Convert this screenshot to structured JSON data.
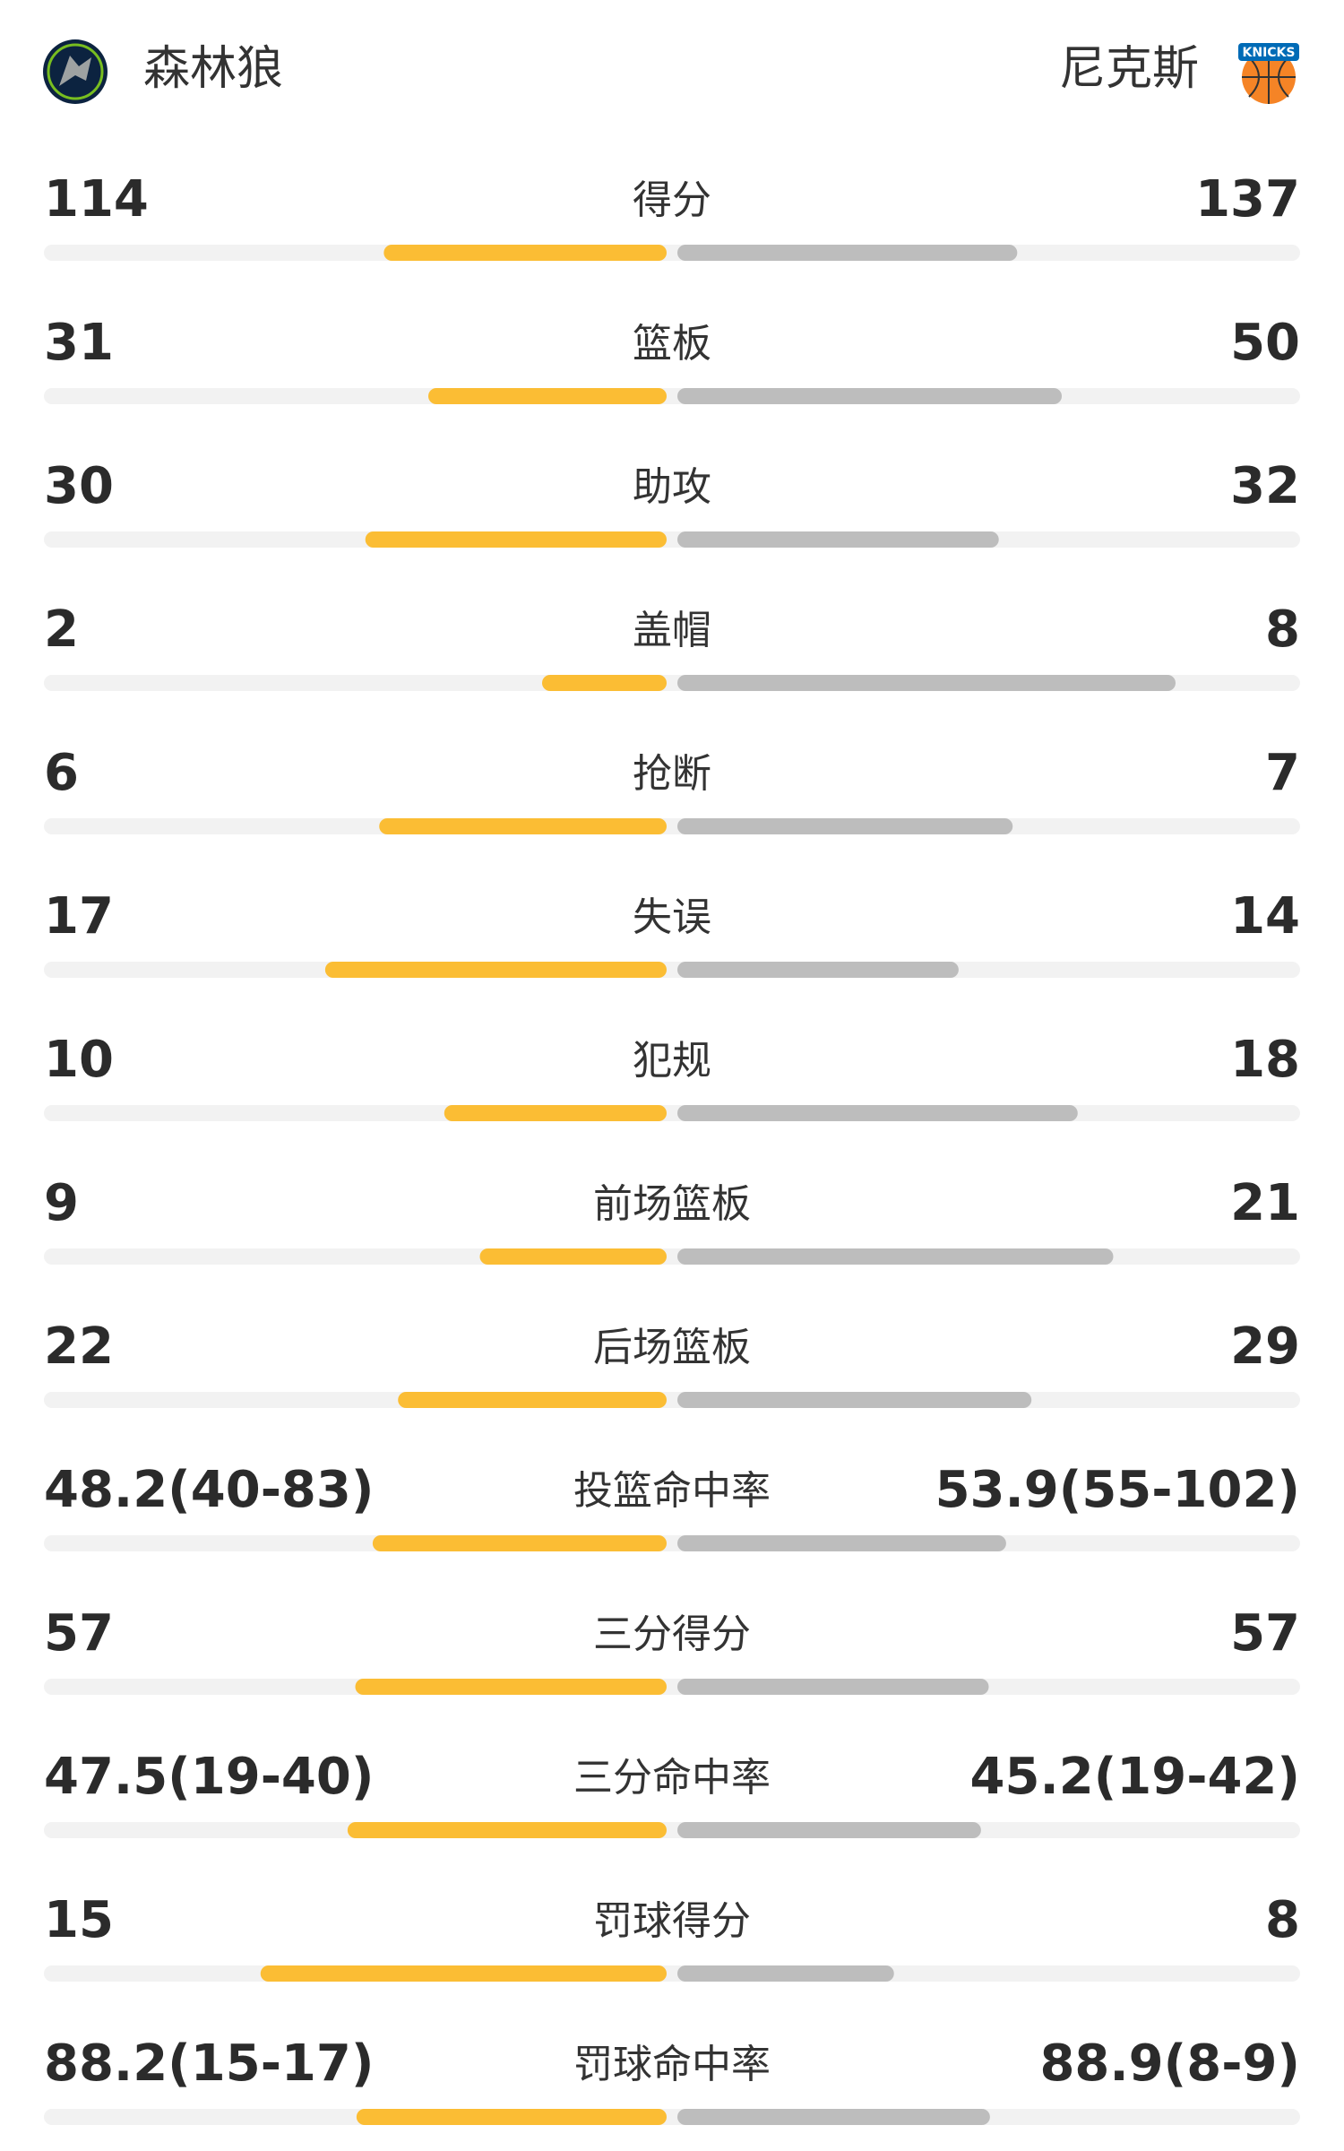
{
  "header": {
    "home": "森林狼",
    "away": "尼克斯",
    "away_logo_text": "KNICKS"
  },
  "stats": {
    "rows": [
      {
        "label": "得分",
        "values": [
          114,
          137
        ]
      },
      {
        "label": "篮板",
        "values": [
          31,
          50
        ]
      },
      {
        "label": "助攻",
        "values": [
          30,
          32
        ]
      },
      {
        "label": "盖帽",
        "values": [
          2,
          8
        ]
      },
      {
        "label": "抢断",
        "values": [
          6,
          7
        ]
      },
      {
        "label": "失误",
        "values": [
          17,
          14
        ]
      },
      {
        "label": "犯规",
        "values": [
          10,
          18
        ]
      },
      {
        "label": "前场篮板",
        "values": [
          9,
          21
        ]
      },
      {
        "label": "后场篮板",
        "values": [
          22,
          29
        ]
      },
      {
        "label": "投篮命中率",
        "values": [
          48.2,
          53.9
        ],
        "value_labels": [
          "48.2(40-83)",
          "53.9(55-102)"
        ]
      },
      {
        "label": "三分得分",
        "values": [
          57,
          57
        ]
      },
      {
        "label": "三分命中率",
        "values": [
          47.5,
          45.2
        ],
        "value_labels": [
          "47.5(19-40)",
          "45.2(19-42)"
        ]
      },
      {
        "label": "罚球得分",
        "values": [
          15,
          8
        ]
      },
      {
        "label": "罚球命中率",
        "values": [
          88.2,
          88.9
        ],
        "value_labels": [
          "88.2(15-17)",
          "88.9(8-9)"
        ]
      }
    ]
  }
}
